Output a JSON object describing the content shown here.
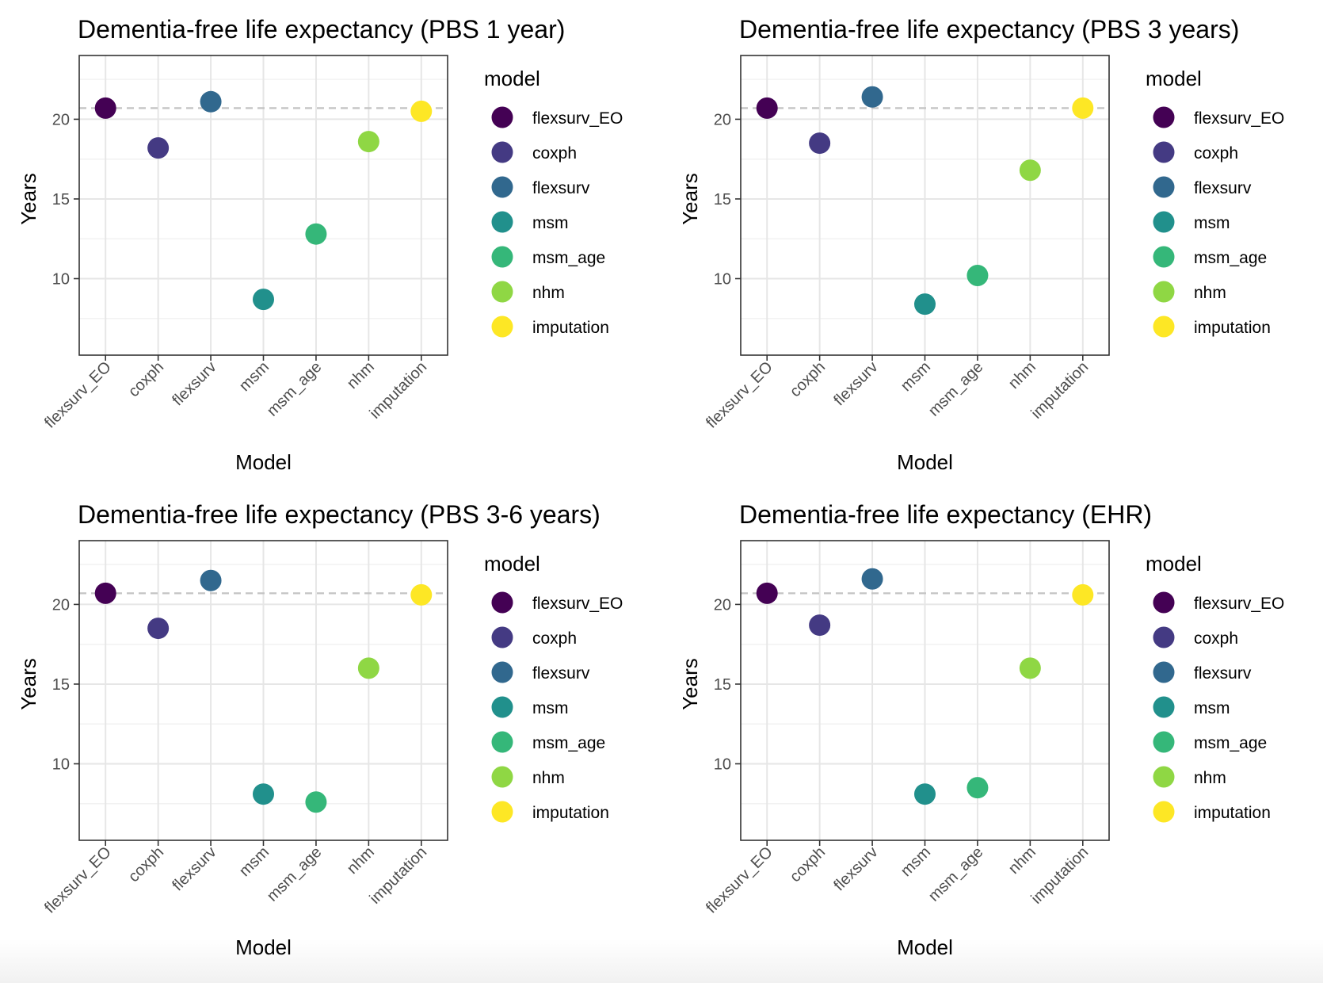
{
  "figure": {
    "legend_title": "model",
    "ylabel": "Years",
    "xlabel": "Model",
    "reference_line": 20.7
  },
  "models": [
    "flexsurv_EO",
    "coxph",
    "flexsurv",
    "msm",
    "msm_age",
    "nhm",
    "imputation"
  ],
  "colors": [
    "#440154",
    "#443A83",
    "#31688E",
    "#21908C",
    "#35B779",
    "#8FD744",
    "#FDE725"
  ],
  "chart_data": [
    {
      "type": "scatter",
      "title": "Dementia-free life expectancy (PBS 1 year)",
      "categories": [
        "flexsurv_EO",
        "coxph",
        "flexsurv",
        "msm",
        "msm_age",
        "nhm",
        "imputation"
      ],
      "values": [
        20.7,
        18.2,
        21.1,
        8.7,
        12.8,
        18.6,
        20.5
      ],
      "xlabel": "Model",
      "ylabel": "Years",
      "yticks": [
        10,
        15,
        20
      ],
      "ylim": [
        5.2,
        24.0
      ],
      "reference_line": 20.7,
      "legend_position": "right",
      "grid": true
    },
    {
      "type": "scatter",
      "title": "Dementia-free life expectancy (PBS 3 years)",
      "categories": [
        "flexsurv_EO",
        "coxph",
        "flexsurv",
        "msm",
        "msm_age",
        "nhm",
        "imputation"
      ],
      "values": [
        20.7,
        18.5,
        21.4,
        8.4,
        10.2,
        16.8,
        20.7
      ],
      "xlabel": "Model",
      "ylabel": "Years",
      "yticks": [
        10,
        15,
        20
      ],
      "ylim": [
        5.2,
        24.0
      ],
      "reference_line": 20.7,
      "legend_position": "right",
      "grid": true
    },
    {
      "type": "scatter",
      "title": "Dementia-free life expectancy (PBS 3-6 years)",
      "categories": [
        "flexsurv_EO",
        "coxph",
        "flexsurv",
        "msm",
        "msm_age",
        "nhm",
        "imputation"
      ],
      "values": [
        20.7,
        18.5,
        21.5,
        8.1,
        7.6,
        16.0,
        20.6
      ],
      "xlabel": "Model",
      "ylabel": "Years",
      "yticks": [
        10,
        15,
        20
      ],
      "ylim": [
        5.2,
        24.0
      ],
      "reference_line": 20.7,
      "legend_position": "right",
      "grid": true
    },
    {
      "type": "scatter",
      "title": "Dementia-free life expectancy (EHR)",
      "categories": [
        "flexsurv_EO",
        "coxph",
        "flexsurv",
        "msm",
        "msm_age",
        "nhm",
        "imputation"
      ],
      "values": [
        20.7,
        18.7,
        21.6,
        8.1,
        8.5,
        16.0,
        20.6
      ],
      "xlabel": "Model",
      "ylabel": "Years",
      "yticks": [
        10,
        15,
        20
      ],
      "ylim": [
        5.2,
        24.0
      ],
      "reference_line": 20.7,
      "legend_position": "right",
      "grid": true
    }
  ]
}
